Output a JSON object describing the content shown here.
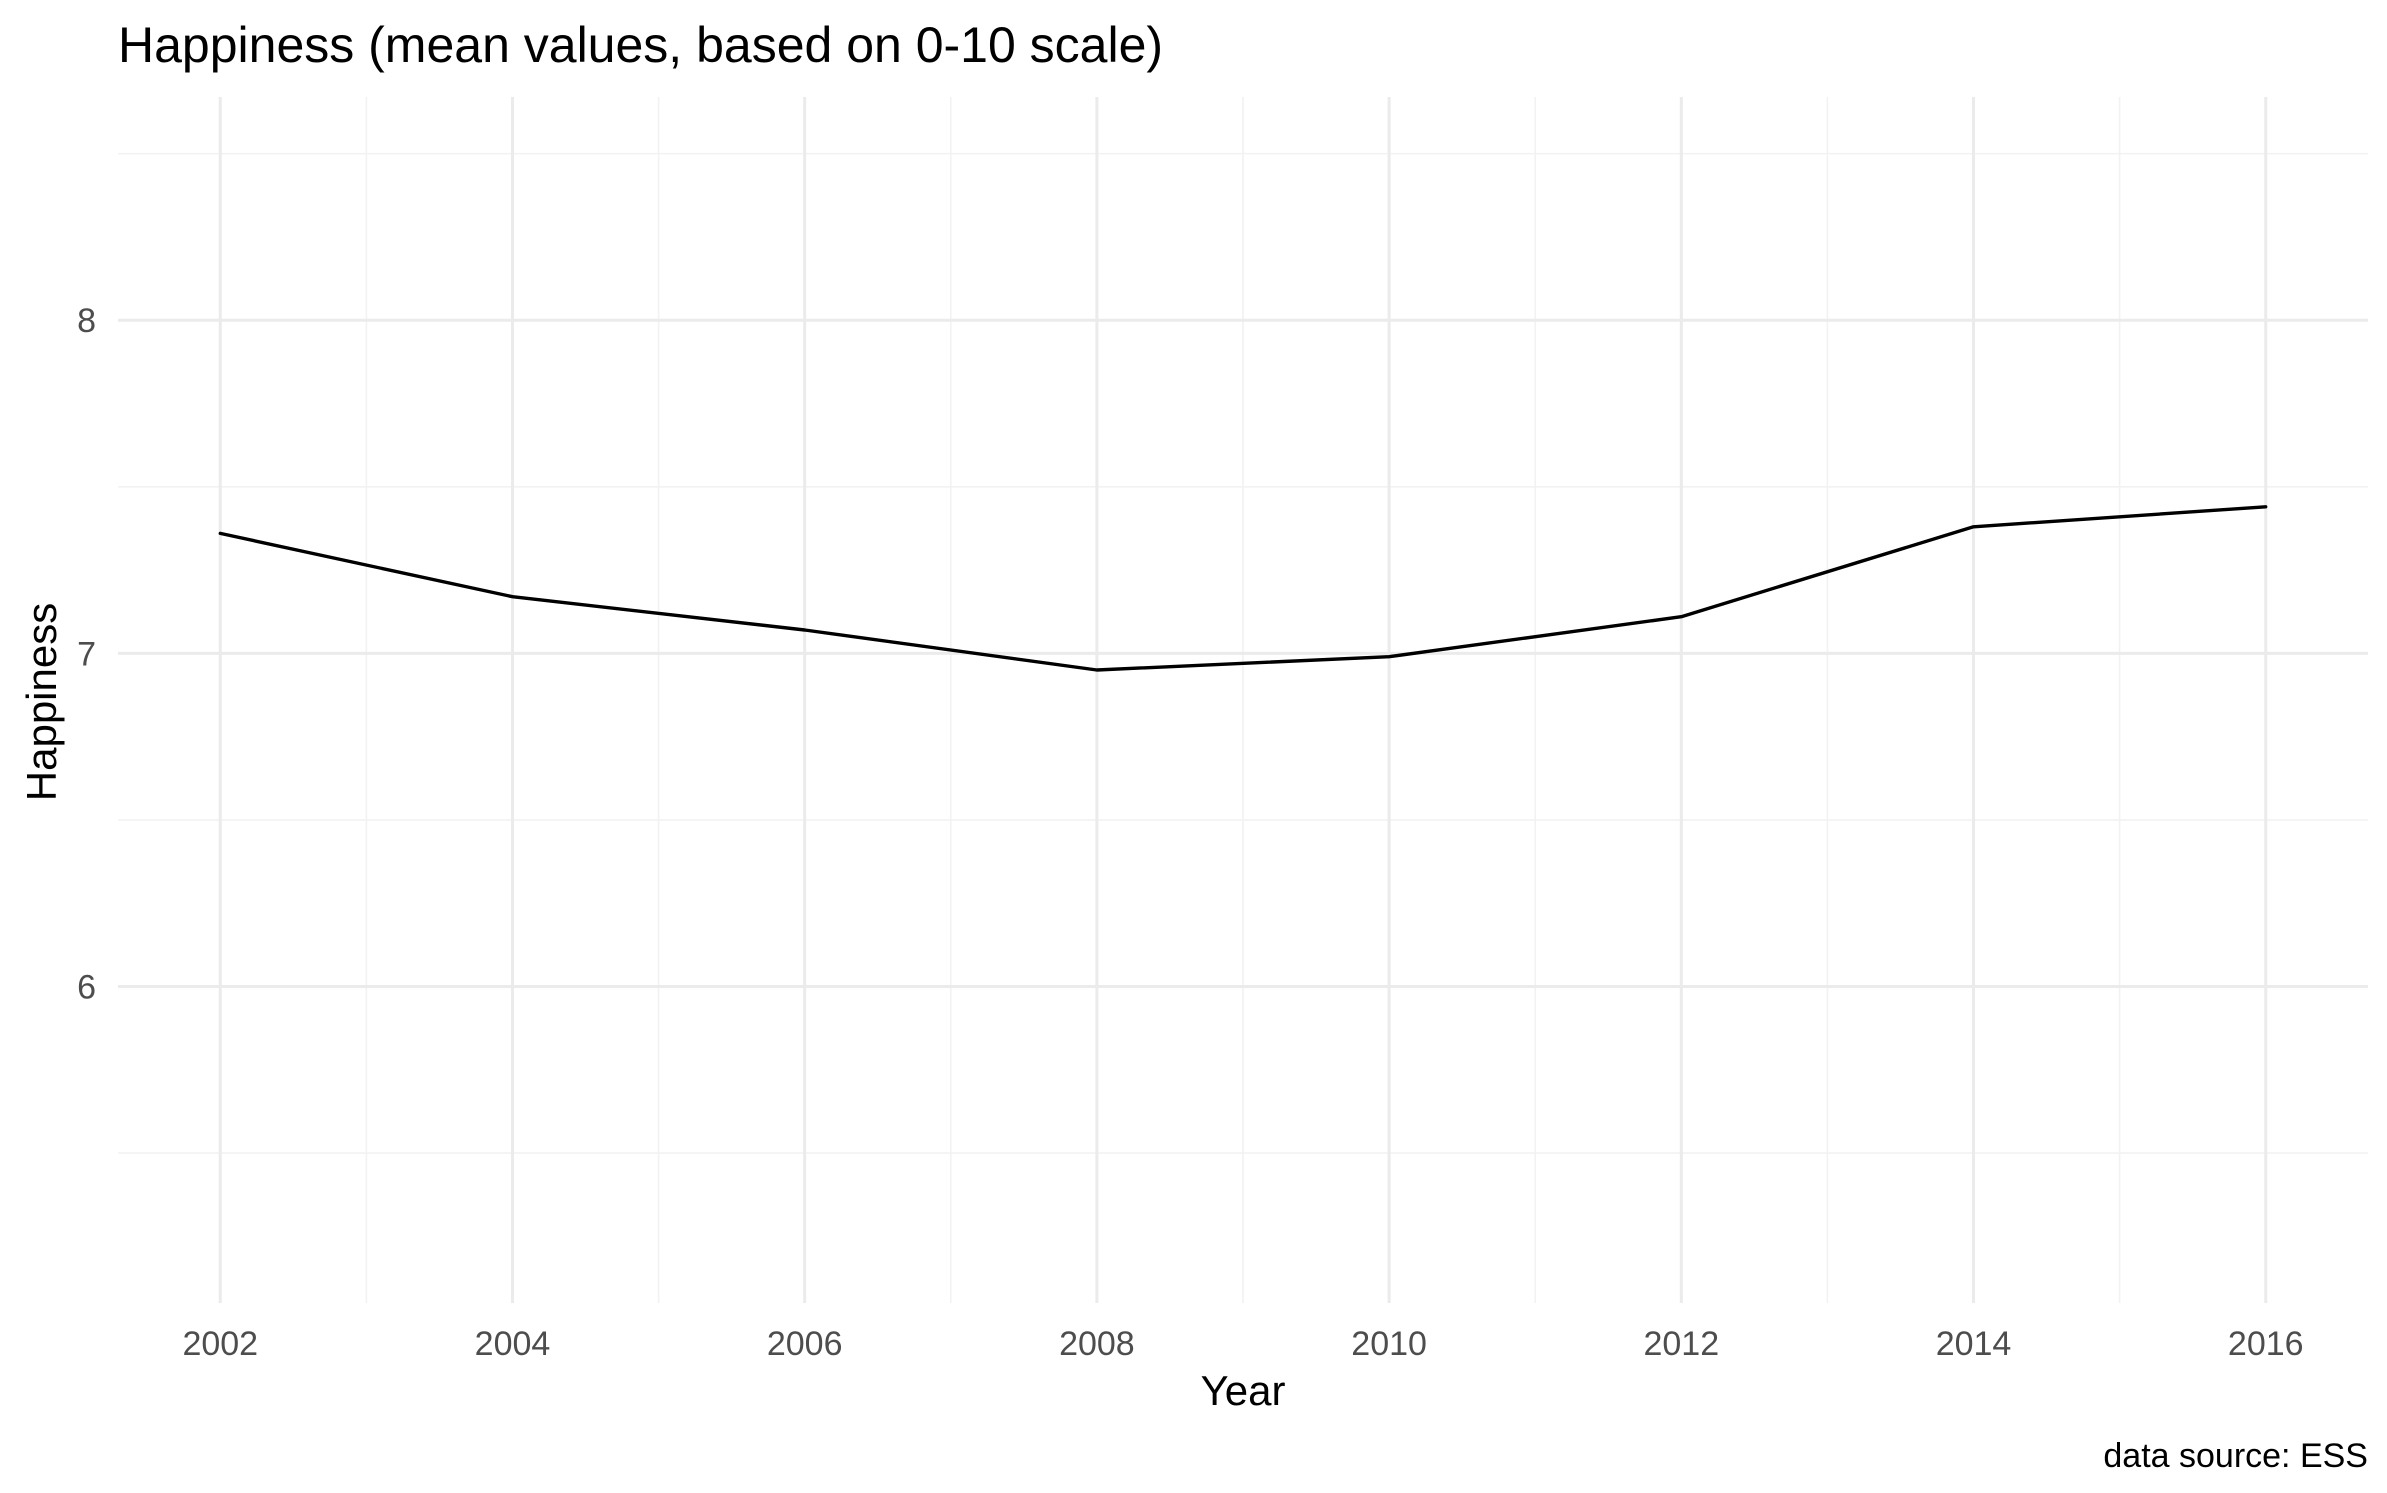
{
  "chart_data": {
    "type": "line",
    "title": "Happiness (mean values, based on 0-10 scale)",
    "xlabel": "Year",
    "ylabel": "Happiness",
    "caption": "data source: ESS",
    "x": [
      2002,
      2004,
      2006,
      2008,
      2010,
      2012,
      2014,
      2016
    ],
    "series": [
      {
        "values": [
          7.36,
          7.17,
          7.07,
          6.95,
          6.99,
          7.11,
          7.38,
          7.44
        ]
      }
    ],
    "xlim": [
      2001.3,
      2016.7
    ],
    "ylim": [
      5.05,
      8.67
    ],
    "x_ticks": [
      2002,
      2004,
      2006,
      2008,
      2010,
      2012,
      2014,
      2016
    ],
    "y_ticks": [
      6,
      7,
      8
    ],
    "grid": true,
    "legend": "none",
    "line_color": "#000000",
    "grid_color": "#ebebeb"
  }
}
